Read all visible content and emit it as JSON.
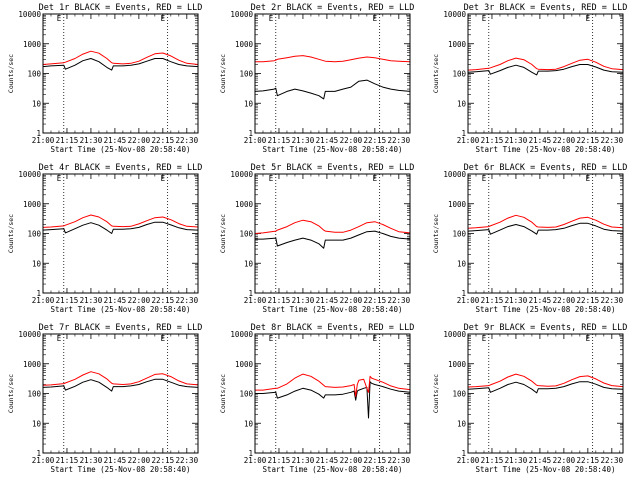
{
  "chart_data": [
    {
      "type": "line",
      "title": "Det 1r BLACK = Events, RED = LLD",
      "xlabel": "Start Time (25-Nov-08 20:58:40)",
      "ylabel": "Counts/sec",
      "yscale": "log",
      "ylim": [
        1,
        10000
      ],
      "y_ticks": [
        "1",
        "10",
        "100",
        "1000",
        "10000"
      ],
      "x_ticks": [
        "21:00",
        "21:15",
        "21:30",
        "21:45",
        "22:00",
        "22:15",
        "22:30"
      ],
      "x_tick_minutes": [
        0,
        15,
        30,
        45,
        60,
        75,
        90
      ],
      "xlim_minutes": [
        0,
        97
      ],
      "marker_lines_minutes": [
        13,
        78
      ],
      "marker_labels": [
        "E",
        "E"
      ],
      "grid": false,
      "legend": "none",
      "colors": {
        "events": "#000000",
        "lld": "#ff0000"
      },
      "x": [
        0,
        5,
        13,
        14,
        20,
        25,
        30,
        35,
        40,
        43,
        44,
        50,
        55,
        60,
        65,
        70,
        75,
        80,
        85,
        90,
        97
      ],
      "series": [
        {
          "key": "events",
          "values": [
            170,
            180,
            190,
            140,
            190,
            270,
            320,
            250,
            160,
            130,
            180,
            180,
            190,
            210,
            260,
            320,
            320,
            250,
            200,
            180,
            170
          ]
        },
        {
          "key": "lld",
          "values": [
            200,
            210,
            230,
            240,
            320,
            450,
            560,
            480,
            320,
            230,
            220,
            210,
            220,
            260,
            350,
            460,
            490,
            390,
            280,
            220,
            200
          ]
        }
      ]
    },
    {
      "type": "line",
      "title": "Det 2r BLACK = Events, RED = LLD",
      "xlabel": "Start Time (25-Nov-08 20:58:40)",
      "ylabel": "Counts/sec",
      "yscale": "log",
      "ylim": [
        1,
        10000
      ],
      "y_ticks": [
        "1",
        "10",
        "100",
        "1000",
        "10000"
      ],
      "x_ticks": [
        "21:00",
        "21:15",
        "21:30",
        "21:45",
        "22:00",
        "22:15",
        "22:30"
      ],
      "x_tick_minutes": [
        0,
        15,
        30,
        45,
        60,
        75,
        90
      ],
      "xlim_minutes": [
        0,
        97
      ],
      "marker_lines_minutes": [
        13,
        78
      ],
      "marker_labels": [
        "E",
        "E"
      ],
      "grid": false,
      "legend": "none",
      "colors": {
        "events": "#000000",
        "lld": "#ff0000"
      },
      "x": [
        0,
        5,
        12,
        13,
        14,
        20,
        25,
        30,
        35,
        40,
        43,
        44,
        50,
        55,
        60,
        65,
        70,
        75,
        80,
        85,
        90,
        97
      ],
      "series": [
        {
          "key": "events",
          "values": [
            25,
            26,
            30,
            32,
            18,
            25,
            30,
            26,
            22,
            18,
            14,
            25,
            25,
            30,
            35,
            55,
            60,
            45,
            35,
            30,
            27,
            25
          ]
        },
        {
          "key": "lld",
          "values": [
            250,
            250,
            270,
            280,
            300,
            340,
            380,
            400,
            360,
            300,
            270,
            260,
            250,
            260,
            290,
            330,
            360,
            340,
            300,
            270,
            260,
            250
          ]
        }
      ]
    },
    {
      "type": "line",
      "title": "Det 3r BLACK = Events, RED = LLD",
      "xlabel": "Start Time (25-Nov-08 20:58:40)",
      "ylabel": "Counts/sec",
      "yscale": "log",
      "ylim": [
        1,
        10000
      ],
      "y_ticks": [
        "1",
        "10",
        "100",
        "1000",
        "10000"
      ],
      "x_ticks": [
        "21:00",
        "21:15",
        "21:30",
        "21:45",
        "22:00",
        "22:15",
        "22:30"
      ],
      "x_tick_minutes": [
        0,
        15,
        30,
        45,
        60,
        75,
        90
      ],
      "xlim_minutes": [
        0,
        97
      ],
      "marker_lines_minutes": [
        13,
        78
      ],
      "marker_labels": [
        "E",
        "E"
      ],
      "grid": false,
      "legend": "none",
      "colors": {
        "events": "#000000",
        "lld": "#ff0000"
      },
      "x": [
        0,
        5,
        13,
        14,
        20,
        25,
        30,
        35,
        40,
        43,
        44,
        50,
        55,
        60,
        65,
        70,
        75,
        80,
        85,
        90,
        97
      ],
      "series": [
        {
          "key": "events",
          "values": [
            110,
            115,
            125,
            95,
            125,
            160,
            190,
            160,
            110,
            90,
            120,
            120,
            125,
            140,
            170,
            200,
            200,
            165,
            130,
            115,
            110
          ]
        },
        {
          "key": "lld",
          "values": [
            130,
            135,
            150,
            155,
            200,
            270,
            330,
            290,
            200,
            145,
            140,
            135,
            140,
            170,
            220,
            280,
            300,
            240,
            175,
            145,
            135
          ]
        }
      ]
    },
    {
      "type": "line",
      "title": "Det 4r BLACK = Events, RED = LLD",
      "xlabel": "Start Time (25-Nov-08 20:58:40)",
      "ylabel": "Counts/sec",
      "yscale": "log",
      "ylim": [
        1,
        10000
      ],
      "y_ticks": [
        "1",
        "10",
        "100",
        "1000",
        "10000"
      ],
      "x_ticks": [
        "21:00",
        "21:15",
        "21:30",
        "21:45",
        "22:00",
        "22:15",
        "22:30"
      ],
      "x_tick_minutes": [
        0,
        15,
        30,
        45,
        60,
        75,
        90
      ],
      "xlim_minutes": [
        0,
        97
      ],
      "marker_lines_minutes": [
        13,
        78
      ],
      "marker_labels": [
        "E",
        "E"
      ],
      "grid": false,
      "legend": "none",
      "colors": {
        "events": "#000000",
        "lld": "#ff0000"
      },
      "x": [
        0,
        5,
        13,
        14,
        20,
        25,
        30,
        35,
        40,
        43,
        44,
        50,
        55,
        60,
        65,
        70,
        75,
        80,
        85,
        90,
        97
      ],
      "series": [
        {
          "key": "events",
          "values": [
            130,
            135,
            145,
            105,
            145,
            190,
            230,
            190,
            130,
            100,
            140,
            140,
            145,
            160,
            200,
            240,
            240,
            195,
            155,
            135,
            130
          ]
        },
        {
          "key": "lld",
          "values": [
            160,
            165,
            180,
            190,
            250,
            340,
            420,
            360,
            250,
            180,
            175,
            170,
            175,
            210,
            270,
            340,
            360,
            290,
            215,
            175,
            165
          ]
        }
      ]
    },
    {
      "type": "line",
      "title": "Det 5r BLACK = Events, RED = LLD",
      "xlabel": "Start Time (25-Nov-08 20:58:40)",
      "ylabel": "Counts/sec",
      "yscale": "log",
      "ylim": [
        1,
        10000
      ],
      "y_ticks": [
        "1",
        "10",
        "100",
        "1000",
        "10000"
      ],
      "x_ticks": [
        "21:00",
        "21:15",
        "21:30",
        "21:45",
        "22:00",
        "22:15",
        "22:30"
      ],
      "x_tick_minutes": [
        0,
        15,
        30,
        45,
        60,
        75,
        90
      ],
      "xlim_minutes": [
        0,
        97
      ],
      "marker_lines_minutes": [
        13,
        78
      ],
      "marker_labels": [
        "E",
        "E"
      ],
      "grid": false,
      "legend": "none",
      "colors": {
        "events": "#000000",
        "lld": "#ff0000"
      },
      "x": [
        0,
        5,
        13,
        14,
        20,
        25,
        30,
        35,
        40,
        43,
        44,
        50,
        55,
        60,
        65,
        70,
        75,
        80,
        85,
        90,
        97
      ],
      "series": [
        {
          "key": "events",
          "values": [
            65,
            65,
            70,
            38,
            50,
            60,
            70,
            60,
            45,
            32,
            60,
            60,
            60,
            70,
            90,
            115,
            120,
            100,
            80,
            70,
            65
          ]
        },
        {
          "key": "lld",
          "values": [
            100,
            105,
            120,
            130,
            170,
            230,
            280,
            250,
            180,
            130,
            120,
            110,
            110,
            130,
            170,
            230,
            250,
            200,
            150,
            115,
            105
          ]
        }
      ]
    },
    {
      "type": "line",
      "title": "Det 6r BLACK = Events, RED = LLD",
      "xlabel": "Start Time (25-Nov-08 20:58:40)",
      "ylabel": "Counts/sec",
      "yscale": "log",
      "ylim": [
        1,
        10000
      ],
      "y_ticks": [
        "1",
        "10",
        "100",
        "1000",
        "10000"
      ],
      "x_ticks": [
        "21:00",
        "21:15",
        "21:30",
        "21:45",
        "22:00",
        "22:15",
        "22:30"
      ],
      "x_tick_minutes": [
        0,
        15,
        30,
        45,
        60,
        75,
        90
      ],
      "xlim_minutes": [
        0,
        97
      ],
      "marker_lines_minutes": [
        13,
        78
      ],
      "marker_labels": [
        "E",
        "E"
      ],
      "grid": false,
      "legend": "none",
      "colors": {
        "events": "#000000",
        "lld": "#ff0000"
      },
      "x": [
        0,
        5,
        13,
        14,
        20,
        25,
        30,
        35,
        40,
        43,
        44,
        50,
        55,
        60,
        65,
        70,
        75,
        80,
        85,
        90,
        97
      ],
      "series": [
        {
          "key": "events",
          "values": [
            120,
            125,
            135,
            95,
            130,
            170,
            200,
            170,
            120,
            95,
            130,
            130,
            135,
            150,
            185,
            220,
            220,
            180,
            140,
            125,
            120
          ]
        },
        {
          "key": "lld",
          "values": [
            150,
            155,
            170,
            180,
            240,
            330,
            410,
            350,
            240,
            170,
            165,
            160,
            165,
            200,
            260,
            330,
            350,
            280,
            205,
            165,
            155
          ]
        }
      ]
    },
    {
      "type": "line",
      "title": "Det 7r BLACK = Events, RED = LLD",
      "xlabel": "Start Time (25-Nov-08 20:58:40)",
      "ylabel": "Counts/sec",
      "yscale": "log",
      "ylim": [
        1,
        10000
      ],
      "y_ticks": [
        "1",
        "10",
        "100",
        "1000",
        "10000"
      ],
      "x_ticks": [
        "21:00",
        "21:15",
        "21:30",
        "21:45",
        "22:00",
        "22:15",
        "22:30"
      ],
      "x_tick_minutes": [
        0,
        15,
        30,
        45,
        60,
        75,
        90
      ],
      "xlim_minutes": [
        0,
        97
      ],
      "marker_lines_minutes": [
        13,
        78
      ],
      "marker_labels": [
        "E",
        "E"
      ],
      "grid": false,
      "legend": "none",
      "colors": {
        "events": "#000000",
        "lld": "#ff0000"
      },
      "x": [
        0,
        5,
        13,
        14,
        20,
        25,
        30,
        35,
        40,
        43,
        44,
        50,
        55,
        60,
        65,
        70,
        75,
        80,
        85,
        90,
        97
      ],
      "series": [
        {
          "key": "events",
          "values": [
            160,
            165,
            180,
            130,
            175,
            240,
            290,
            240,
            160,
            120,
            170,
            170,
            180,
            200,
            250,
            300,
            300,
            240,
            190,
            170,
            160
          ]
        },
        {
          "key": "lld",
          "values": [
            190,
            195,
            215,
            225,
            300,
            420,
            540,
            460,
            310,
            220,
            210,
            200,
            210,
            250,
            330,
            440,
            460,
            370,
            265,
            210,
            195
          ]
        }
      ]
    },
    {
      "type": "line",
      "title": "Det 8r BLACK = Events, RED = LLD",
      "xlabel": "Start Time (25-Nov-08 20:58:40)",
      "ylabel": "Counts/sec",
      "yscale": "log",
      "ylim": [
        1,
        10000
      ],
      "y_ticks": [
        "1",
        "10",
        "100",
        "1000",
        "10000"
      ],
      "x_ticks": [
        "21:00",
        "21:15",
        "21:30",
        "21:45",
        "22:00",
        "22:15",
        "22:30"
      ],
      "x_tick_minutes": [
        0,
        15,
        30,
        45,
        60,
        75,
        90
      ],
      "xlim_minutes": [
        0,
        97
      ],
      "marker_lines_minutes": [
        13,
        78
      ],
      "marker_labels": [
        "E",
        "E"
      ],
      "grid": false,
      "legend": "none",
      "colors": {
        "events": "#000000",
        "lld": "#ff0000"
      },
      "x": [
        0,
        5,
        13,
        14,
        20,
        25,
        30,
        35,
        40,
        43,
        44,
        50,
        55,
        60,
        62,
        63,
        64,
        65,
        68,
        70,
        71,
        72,
        73,
        75,
        80,
        85,
        90,
        97
      ],
      "series": [
        {
          "key": "events",
          "values": [
            100,
            100,
            110,
            70,
            90,
            120,
            150,
            130,
            95,
            70,
            90,
            90,
            95,
            110,
            120,
            60,
            120,
            130,
            150,
            160,
            15,
            250,
            220,
            200,
            170,
            140,
            120,
            110
          ]
        },
        {
          "key": "lld",
          "values": [
            130,
            130,
            150,
            150,
            210,
            330,
            450,
            380,
            260,
            190,
            170,
            160,
            165,
            185,
            200,
            80,
            200,
            280,
            300,
            150,
            110,
            380,
            330,
            300,
            240,
            180,
            150,
            135
          ]
        }
      ]
    },
    {
      "type": "line",
      "title": "Det 9r BLACK = Events, RED = LLD",
      "xlabel": "Start Time (25-Nov-08 20:58:40)",
      "ylabel": "Counts/sec",
      "yscale": "log",
      "ylim": [
        1,
        10000
      ],
      "y_ticks": [
        "1",
        "10",
        "100",
        "1000",
        "10000"
      ],
      "x_ticks": [
        "21:00",
        "21:15",
        "21:30",
        "21:45",
        "22:00",
        "22:15",
        "22:30"
      ],
      "x_tick_minutes": [
        0,
        15,
        30,
        45,
        60,
        75,
        90
      ],
      "xlim_minutes": [
        0,
        97
      ],
      "marker_lines_minutes": [
        13,
        78
      ],
      "marker_labels": [
        "E",
        "E"
      ],
      "grid": false,
      "legend": "none",
      "colors": {
        "events": "#000000",
        "lld": "#ff0000"
      },
      "x": [
        0,
        5,
        13,
        14,
        20,
        25,
        30,
        35,
        40,
        43,
        44,
        50,
        55,
        60,
        65,
        70,
        75,
        80,
        85,
        90,
        97
      ],
      "series": [
        {
          "key": "events",
          "values": [
            140,
            145,
            155,
            110,
            150,
            200,
            240,
            200,
            140,
            105,
            145,
            145,
            150,
            170,
            210,
            250,
            250,
            205,
            160,
            145,
            140
          ]
        },
        {
          "key": "lld",
          "values": [
            165,
            170,
            185,
            195,
            260,
            360,
            450,
            380,
            260,
            190,
            185,
            175,
            180,
            220,
            290,
            370,
            390,
            310,
            225,
            185,
            170
          ]
        }
      ]
    }
  ]
}
